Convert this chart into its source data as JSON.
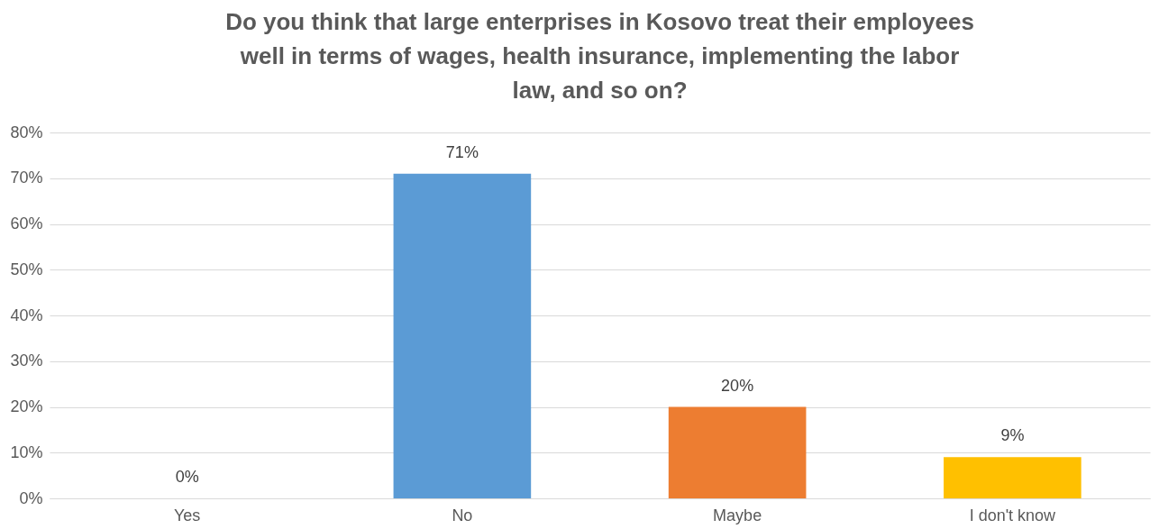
{
  "chart_data": {
    "type": "bar",
    "title": "Do you think that large enterprises in Kosovo treat their employees well in terms of wages, health insurance, implementing the labor law, and so on?",
    "categories": [
      "Yes",
      "No",
      "Maybe",
      "I don't know"
    ],
    "values": [
      0,
      71,
      20,
      9
    ],
    "colors": [
      "#a5a5a5",
      "#5b9bd5",
      "#ed7d31",
      "#ffc000"
    ],
    "value_labels": [
      "0%",
      "71%",
      "20%",
      "9%"
    ],
    "ylim": [
      0,
      80
    ],
    "yticks": [
      {
        "value": 0,
        "label": "0%"
      },
      {
        "value": 10,
        "label": "10%"
      },
      {
        "value": 20,
        "label": "20%"
      },
      {
        "value": 30,
        "label": "30%"
      },
      {
        "value": 40,
        "label": "40%"
      },
      {
        "value": 50,
        "label": "50%"
      },
      {
        "value": 60,
        "label": "60%"
      },
      {
        "value": 70,
        "label": "70%"
      },
      {
        "value": 80,
        "label": "80%"
      }
    ],
    "grid": "y"
  }
}
